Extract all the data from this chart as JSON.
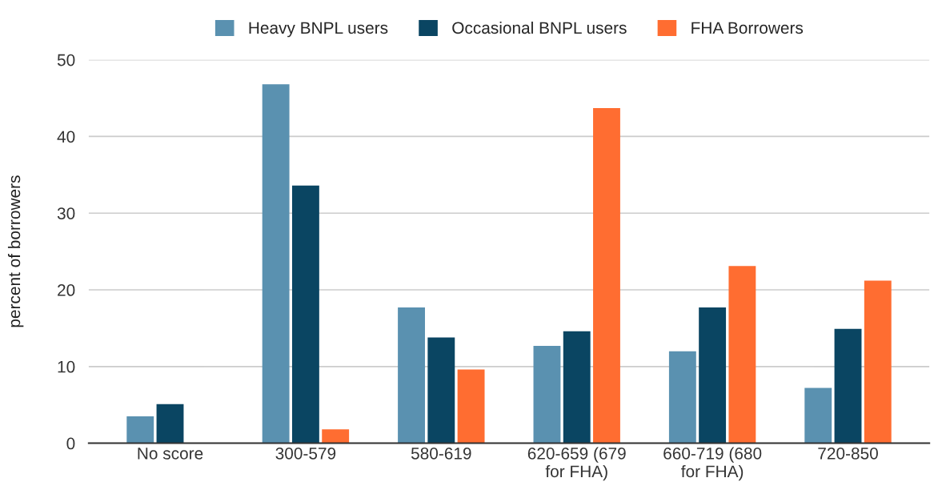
{
  "chart_data": {
    "type": "bar",
    "ylabel": "percent of borrowers",
    "categories": [
      "No score",
      "300-579",
      "580-619",
      "620-659 (679\nfor FHA)",
      "660-719 (680\nfor FHA)",
      "720-850"
    ],
    "series": [
      {
        "name": "Heavy BNPL users",
        "color": "#5a91b0",
        "values": [
          3.5,
          46.8,
          17.7,
          12.7,
          12.0,
          7.2
        ]
      },
      {
        "name": "Occasional BNPL users",
        "color": "#0a4562",
        "values": [
          5.1,
          33.6,
          13.8,
          14.6,
          17.7,
          14.9
        ]
      },
      {
        "name": "FHA Borrowers",
        "color": "#ff6d31",
        "values": [
          null,
          1.8,
          9.6,
          43.7,
          23.1,
          21.2
        ]
      }
    ],
    "ylim": [
      0,
      50
    ],
    "yticks": [
      0,
      10,
      20,
      30,
      40,
      50
    ],
    "grid": "y",
    "legend": "top"
  }
}
